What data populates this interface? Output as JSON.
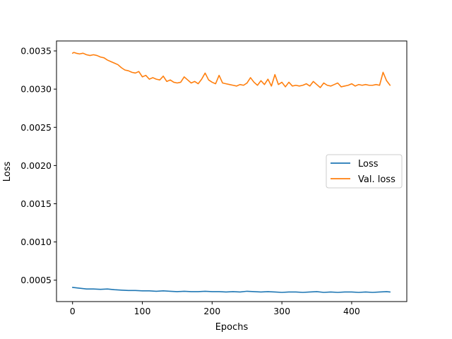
{
  "chart_data": {
    "type": "line",
    "title": "",
    "xlabel": "Epochs",
    "ylabel": "Loss",
    "xlim": [
      -23,
      479
    ],
    "ylim": [
      0.00022,
      0.00363
    ],
    "xticks": [
      0,
      100,
      200,
      300,
      400
    ],
    "xtick_labels": [
      "0",
      "100",
      "200",
      "300",
      "400"
    ],
    "yticks": [
      0.0005,
      0.001,
      0.0015,
      0.002,
      0.0025,
      0.003,
      0.0035
    ],
    "ytick_labels": [
      "0.0005",
      "0.0010",
      "0.0015",
      "0.0020",
      "0.0025",
      "0.0030",
      "0.0035"
    ],
    "grid": false,
    "legend_position": "center-right",
    "series": [
      {
        "name": "Loss",
        "color": "#1f77b4",
        "x": [
          0,
          10,
          20,
          30,
          40,
          50,
          60,
          70,
          80,
          90,
          100,
          110,
          120,
          130,
          140,
          150,
          160,
          170,
          180,
          190,
          200,
          210,
          220,
          230,
          240,
          250,
          260,
          270,
          280,
          290,
          300,
          310,
          320,
          330,
          340,
          350,
          360,
          370,
          380,
          390,
          400,
          410,
          420,
          430,
          440,
          450,
          455
        ],
        "y": [
          0.000405,
          0.000395,
          0.000385,
          0.000385,
          0.00038,
          0.000385,
          0.000375,
          0.00037,
          0.000365,
          0.000365,
          0.00036,
          0.00036,
          0.000355,
          0.00036,
          0.000355,
          0.00035,
          0.000355,
          0.00035,
          0.00035,
          0.000355,
          0.00035,
          0.00035,
          0.000345,
          0.00035,
          0.000345,
          0.000355,
          0.00035,
          0.000345,
          0.00035,
          0.000345,
          0.00034,
          0.000345,
          0.000345,
          0.00034,
          0.000345,
          0.00035,
          0.00034,
          0.000345,
          0.00034,
          0.000345,
          0.000345,
          0.00034,
          0.000345,
          0.00034,
          0.000345,
          0.00035,
          0.000345
        ]
      },
      {
        "name": "Val. loss",
        "color": "#ff7f0e",
        "x": [
          0,
          2,
          5,
          10,
          15,
          20,
          25,
          30,
          35,
          40,
          45,
          50,
          55,
          60,
          65,
          70,
          75,
          80,
          85,
          90,
          95,
          100,
          105,
          110,
          115,
          120,
          125,
          130,
          135,
          140,
          145,
          150,
          155,
          160,
          165,
          170,
          175,
          180,
          185,
          190,
          195,
          200,
          205,
          210,
          215,
          220,
          225,
          230,
          235,
          240,
          245,
          250,
          255,
          260,
          265,
          270,
          275,
          280,
          285,
          290,
          295,
          300,
          305,
          310,
          315,
          320,
          325,
          330,
          335,
          340,
          345,
          350,
          355,
          360,
          365,
          370,
          375,
          380,
          385,
          390,
          395,
          400,
          405,
          410,
          415,
          420,
          425,
          430,
          435,
          440,
          445,
          450,
          455
        ],
        "y": [
          0.00347,
          0.00348,
          0.00347,
          0.00346,
          0.00347,
          0.00345,
          0.00344,
          0.00345,
          0.00344,
          0.00342,
          0.00341,
          0.00338,
          0.00336,
          0.00334,
          0.00332,
          0.00328,
          0.00325,
          0.00324,
          0.00322,
          0.00321,
          0.00323,
          0.00316,
          0.00318,
          0.00313,
          0.00315,
          0.00313,
          0.00312,
          0.00317,
          0.0031,
          0.00312,
          0.00309,
          0.00308,
          0.00309,
          0.00316,
          0.00312,
          0.00308,
          0.0031,
          0.00307,
          0.00313,
          0.00321,
          0.00312,
          0.00309,
          0.00307,
          0.00318,
          0.00308,
          0.00307,
          0.00306,
          0.00305,
          0.00304,
          0.00306,
          0.00305,
          0.00308,
          0.00315,
          0.00309,
          0.00305,
          0.00311,
          0.00306,
          0.00313,
          0.00304,
          0.00319,
          0.00306,
          0.00309,
          0.00303,
          0.00309,
          0.00304,
          0.00305,
          0.00304,
          0.00305,
          0.00307,
          0.00304,
          0.0031,
          0.00306,
          0.00302,
          0.00308,
          0.00305,
          0.00304,
          0.00306,
          0.00308,
          0.00303,
          0.00304,
          0.00305,
          0.00307,
          0.00304,
          0.00306,
          0.00305,
          0.00306,
          0.00305,
          0.00305,
          0.00306,
          0.00305,
          0.00322,
          0.00311,
          0.00305
        ]
      }
    ]
  }
}
